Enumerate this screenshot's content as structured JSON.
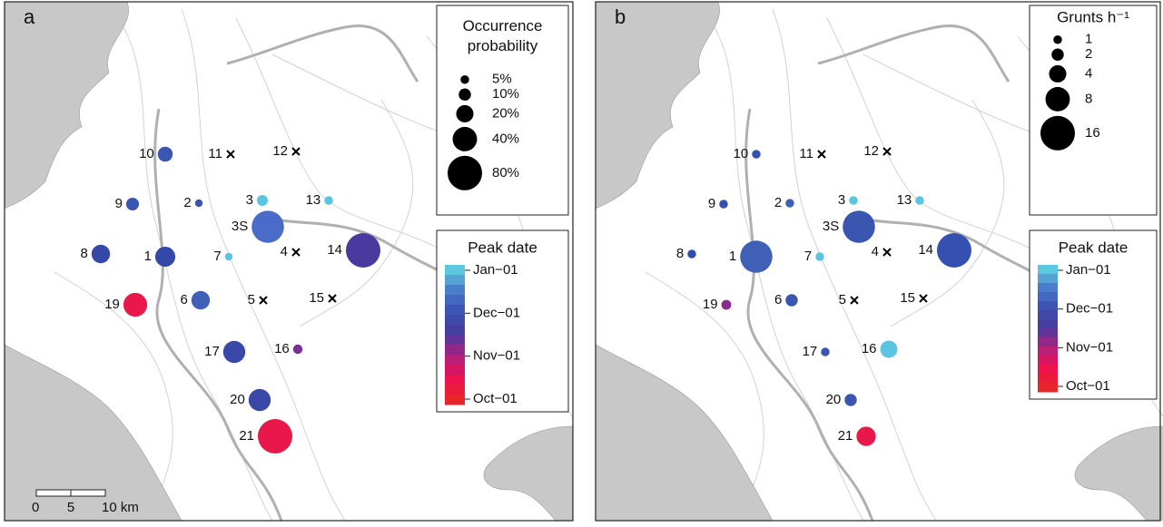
{
  "panels": [
    {
      "letter": "a",
      "size_legend": {
        "title": "Occurrence probability",
        "entries": [
          {
            "value": 5,
            "label": "5%"
          },
          {
            "value": 10,
            "label": "10%"
          },
          {
            "value": 20,
            "label": "20%"
          },
          {
            "value": 40,
            "label": "40%"
          },
          {
            "value": 80,
            "label": "80%"
          }
        ]
      },
      "color_legend": {
        "title": "Peak date",
        "ticks": [
          "Jan−01",
          "Dec−01",
          "Nov−01",
          "Oct−01"
        ],
        "colors": [
          "#5cc8e0",
          "#4a78c8",
          "#3a4fb0",
          "#4a3a9e",
          "#b0207e",
          "#ee1050",
          "#e8252a"
        ]
      },
      "sites": [
        {
          "label": "10",
          "value": 15,
          "color": "#3a56b0"
        },
        {
          "label": "11",
          "value": 0,
          "color": "#000000"
        },
        {
          "label": "12",
          "value": 0,
          "color": "#000000"
        },
        {
          "label": "9",
          "value": 11,
          "color": "#3a56b0"
        },
        {
          "label": "2",
          "value": 4,
          "color": "#3a56b0"
        },
        {
          "label": "3",
          "value": 8,
          "color": "#5bc4e0"
        },
        {
          "label": "3S",
          "value": 70,
          "color": "#4a6cc8"
        },
        {
          "label": "13",
          "value": 5,
          "color": "#5bc4e0"
        },
        {
          "label": "8",
          "value": 23,
          "color": "#3348a8"
        },
        {
          "label": "1",
          "value": 27,
          "color": "#3348a8"
        },
        {
          "label": "7",
          "value": 4,
          "color": "#5bc4e0"
        },
        {
          "label": "4",
          "value": 0,
          "color": "#000000"
        },
        {
          "label": "14",
          "value": 80,
          "color": "#4a3aa0"
        },
        {
          "label": "19",
          "value": 38,
          "color": "#e8194a"
        },
        {
          "label": "6",
          "value": 23,
          "color": "#4060b8"
        },
        {
          "label": "5",
          "value": 0,
          "color": "#000000"
        },
        {
          "label": "15",
          "value": 0,
          "color": "#000000"
        },
        {
          "label": "17",
          "value": 33,
          "color": "#3a48a8"
        },
        {
          "label": "16",
          "value": 6,
          "color": "#7a2e98"
        },
        {
          "label": "20",
          "value": 33,
          "color": "#3a48a8"
        },
        {
          "label": "21",
          "value": 80,
          "color": "#e8194a"
        }
      ],
      "scale_bar": [
        "0",
        "5",
        "10 km"
      ]
    },
    {
      "letter": "b",
      "size_legend": {
        "title": "Grunts h⁻¹",
        "entries": [
          {
            "value": 1,
            "label": "1"
          },
          {
            "value": 2,
            "label": "2"
          },
          {
            "value": 4,
            "label": "4"
          },
          {
            "value": 8,
            "label": "8"
          },
          {
            "value": 16,
            "label": "16"
          }
        ]
      },
      "color_legend": {
        "title": "Peak date",
        "ticks": [
          "Jan−01",
          "Dec−01",
          "Nov−01",
          "Oct−01"
        ],
        "colors": [
          "#5cc8e0",
          "#4a78c8",
          "#3a4fb0",
          "#4a3a9e",
          "#b0207e",
          "#ee1050",
          "#e8252a"
        ]
      },
      "sites": [
        {
          "label": "10",
          "value": 1,
          "color": "#3550b0"
        },
        {
          "label": "11",
          "value": 0,
          "color": "#000000"
        },
        {
          "label": "12",
          "value": 0,
          "color": "#000000"
        },
        {
          "label": "9",
          "value": 1,
          "color": "#3550b0"
        },
        {
          "label": "2",
          "value": 1,
          "color": "#4060b8"
        },
        {
          "label": "3",
          "value": 1,
          "color": "#5bc4e0"
        },
        {
          "label": "3S",
          "value": 14,
          "color": "#3a56b0"
        },
        {
          "label": "13",
          "value": 1,
          "color": "#5bc4e0"
        },
        {
          "label": "8",
          "value": 1,
          "color": "#3050a8"
        },
        {
          "label": "1",
          "value": 14,
          "color": "#4060b8"
        },
        {
          "label": "7",
          "value": 1,
          "color": "#5bc4e0"
        },
        {
          "label": "4",
          "value": 0,
          "color": "#000000"
        },
        {
          "label": "14",
          "value": 16,
          "color": "#3550b0"
        },
        {
          "label": "19",
          "value": 1.3,
          "color": "#8a2c8c"
        },
        {
          "label": "6",
          "value": 2,
          "color": "#3a56b0"
        },
        {
          "label": "5",
          "value": 0,
          "color": "#000000"
        },
        {
          "label": "15",
          "value": 0,
          "color": "#000000"
        },
        {
          "label": "17",
          "value": 1,
          "color": "#3a56b0"
        },
        {
          "label": "16",
          "value": 4,
          "color": "#5bc4e0"
        },
        {
          "label": "20",
          "value": 2,
          "color": "#3a56b0"
        },
        {
          "label": "21",
          "value": 5,
          "color": "#e8194a"
        }
      ]
    }
  ]
}
